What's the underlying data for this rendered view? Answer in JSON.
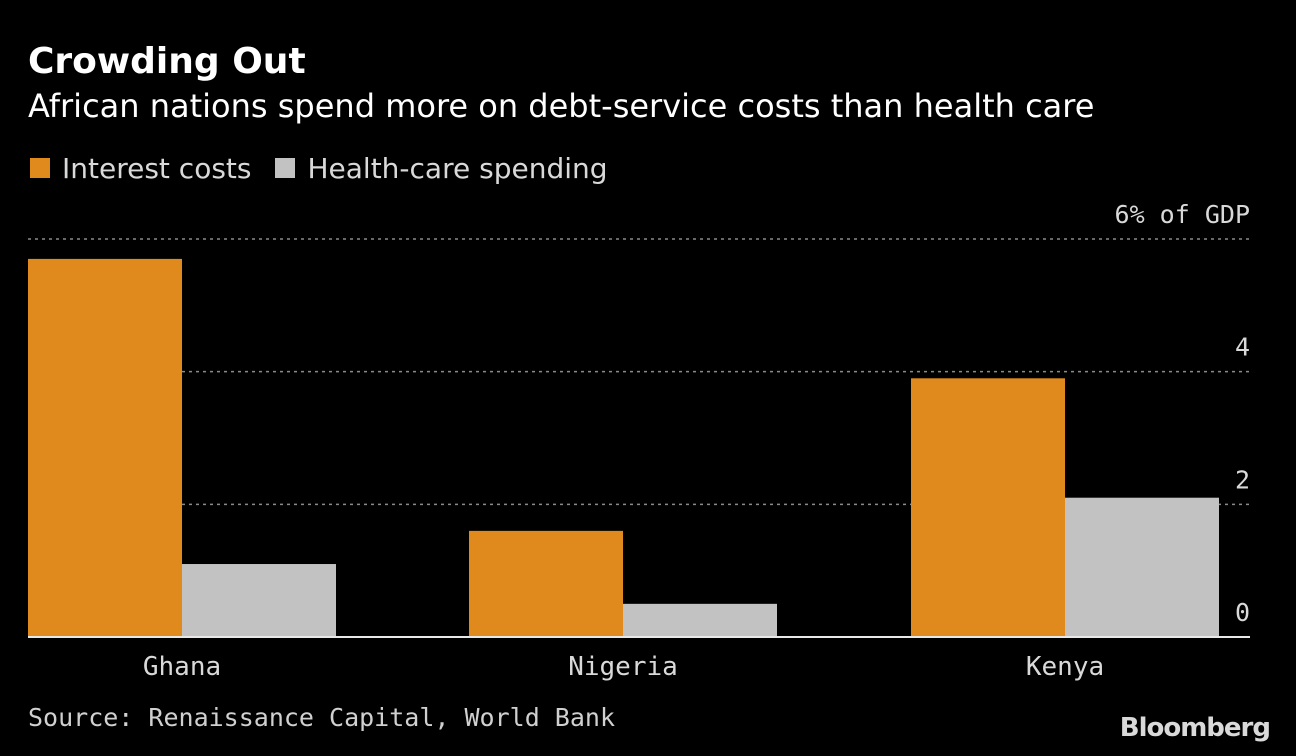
{
  "header": {
    "title": "Crowding Out",
    "subtitle": "African nations spend more on debt-service costs than health care"
  },
  "legend": {
    "items": [
      {
        "label": "Interest costs",
        "color": "#e08a1e"
      },
      {
        "label": "Health-care spending",
        "color": "#c2c2c2"
      }
    ]
  },
  "footer": {
    "source": "Source: Renaissance Capital, World Bank",
    "brand": "Bloomberg"
  },
  "chart_data": {
    "type": "bar",
    "categories": [
      "Ghana",
      "Nigeria",
      "Kenya"
    ],
    "series": [
      {
        "name": "Interest costs",
        "values": [
          5.7,
          1.6,
          3.9
        ],
        "color": "#e08a1e"
      },
      {
        "name": "Health-care spending",
        "values": [
          1.1,
          0.5,
          2.1
        ],
        "color": "#c2c2c2"
      }
    ],
    "ylim": [
      0,
      6
    ],
    "yticks": [
      {
        "value": 0,
        "label": "0"
      },
      {
        "value": 2,
        "label": "2"
      },
      {
        "value": 4,
        "label": "4"
      },
      {
        "value": 6,
        "label": "6% of GDP"
      }
    ],
    "grid": true,
    "legend_position": "top-left",
    "xlabel": "",
    "ylabel": ""
  }
}
